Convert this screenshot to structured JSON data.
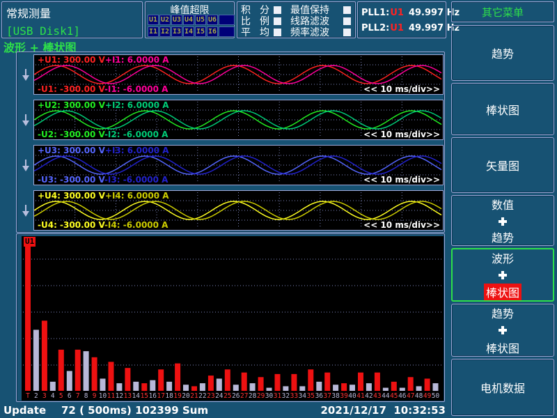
{
  "window": {
    "bg": "#17527 3",
    "border": "#9fa8d8",
    "accent_green": "#2ee04a"
  },
  "header": {
    "mode_title": "常规测量",
    "storage": "[USB Disk1]",
    "peak_over_limit": {
      "title": "峰值超限",
      "rows": [
        [
          "U1",
          "U2",
          "U3",
          "U4",
          "U5",
          "U6",
          ""
        ],
        [
          "I1",
          "I2",
          "I3",
          "I4",
          "I5",
          "I6",
          ""
        ]
      ]
    },
    "toggles": {
      "left_rows": [
        [
          "积",
          "分"
        ],
        [
          "比",
          "例"
        ],
        [
          "平",
          "均"
        ]
      ],
      "right_rows": [
        "最值保持",
        "线路滤波",
        "频率滤波"
      ]
    },
    "pll": [
      {
        "name": "PLL1:",
        "source": "U1",
        "value": "49.997 Hz"
      },
      {
        "name": "PLL2:",
        "source": "U1",
        "value": "49.997 Hz"
      }
    ]
  },
  "sidebar": {
    "title": "其它菜单",
    "items": [
      {
        "name": "trend",
        "lines": [
          "趋势"
        ]
      },
      {
        "name": "bar-graph",
        "lines": [
          "棒状图"
        ]
      },
      {
        "name": "vector-graph",
        "lines": [
          "矢量图"
        ]
      },
      {
        "name": "numeric-trend",
        "lines": [
          "数值",
          "+",
          "趋势"
        ]
      },
      {
        "name": "wave-bar",
        "lines": [
          "波形",
          "+",
          "棒状图"
        ],
        "selected": true,
        "highlighted_line": "棒状图"
      },
      {
        "name": "trend-bar",
        "lines": [
          "趋势",
          "+",
          "棒状图"
        ]
      },
      {
        "name": "motor-data",
        "lines": [
          "电机数据"
        ]
      }
    ]
  },
  "main": {
    "view_title": "波形 + 棒状图",
    "timebase": "<< 10 ms/div>>",
    "panels": [
      {
        "u_label": "+U1: 300.00 V",
        "i_label": "+I1: 6.0000 A",
        "u_label_neg": "-U1: -300.00 V",
        "i_label_neg": "-I1: -6.0000 A",
        "u_color": "#ff2222",
        "i_color": "#ff0099"
      },
      {
        "u_label": "+U2: 300.00 V",
        "i_label": "+I2: 6.0000 A",
        "u_label_neg": "-U2: -300.00 V",
        "i_label_neg": "-I2: -6.0000 A",
        "u_color": "#22ee22",
        "i_color": "#00cc77"
      },
      {
        "u_label": "+U3: 300.00 V",
        "i_label": "+I3: 6.0000 A",
        "u_label_neg": "-U3: -300.00 V",
        "i_label_neg": "-I3: -6.0000 A",
        "u_color": "#5566ff",
        "i_color": "#2222cc"
      },
      {
        "u_label": "+U4: 300.00 V",
        "i_label": "+I4: 6.0000 A",
        "u_label_neg": "-U4: -300.00 V",
        "i_label_neg": "-I4: -6.0000 A",
        "u_color": "#ffff22",
        "i_color": "#cccc00"
      }
    ]
  },
  "chart_data": {
    "type": "bar",
    "title": "U1",
    "categories": [
      "T",
      "2",
      "3",
      "4",
      "5",
      "6",
      "7",
      "8",
      "9",
      "10",
      "11",
      "12",
      "13",
      "14",
      "15",
      "16",
      "17",
      "18",
      "19",
      "20",
      "21",
      "22",
      "23",
      "24",
      "25",
      "26",
      "27",
      "28",
      "29",
      "30",
      "31",
      "32",
      "33",
      "34",
      "35",
      "36",
      "37",
      "38",
      "39",
      "40",
      "41",
      "42",
      "43",
      "44",
      "45",
      "46",
      "47",
      "48",
      "49",
      "50"
    ],
    "values": [
      100,
      40,
      46,
      6,
      27,
      13,
      27,
      26,
      22,
      8,
      19,
      5,
      15,
      6,
      5,
      7,
      14,
      6,
      18,
      4,
      3,
      5,
      10,
      8,
      14,
      4,
      12,
      5,
      9,
      2,
      11,
      3,
      11,
      3,
      14,
      6,
      12,
      4,
      5,
      4,
      12,
      5,
      12,
      2,
      6,
      2,
      9,
      3,
      8,
      5
    ],
    "ylim": [
      0,
      100
    ],
    "grid": true,
    "background": "#000000",
    "odd_color": "#ee1111",
    "even_color": "#b8b8d8",
    "legend": "odd harmonics red, even harmonics gray"
  },
  "status": {
    "update_label": "Update",
    "update_value": "72 ( 500ms) 102399 Sum",
    "datetime": "2021/12/17  10:32:53"
  }
}
